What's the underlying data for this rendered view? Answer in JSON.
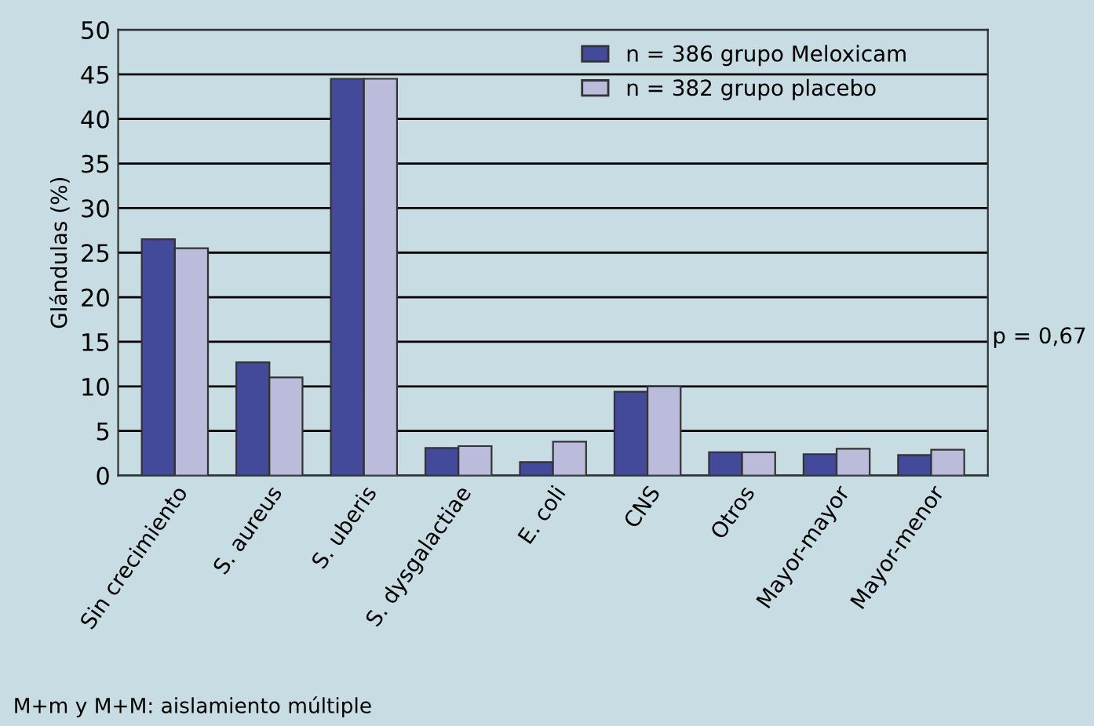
{
  "chart_data": {
    "type": "bar",
    "ylabel": "Glándulas (%)",
    "categories": [
      "Sin crecimiento",
      "S. aureus",
      "S. uberis",
      "S. dysgalactiae",
      "E. coli",
      "CNS",
      "Otros",
      "Mayor-mayor",
      "Mayor-menor"
    ],
    "series": [
      {
        "name": "n = 386 grupo Meloxicam",
        "color": "#434a9a",
        "values": [
          26.5,
          12.7,
          44.5,
          3.1,
          1.5,
          9.4,
          2.6,
          2.4,
          2.3
        ]
      },
      {
        "name": "n = 382 grupo placebo",
        "color": "#bbbbdc",
        "values": [
          25.5,
          11.0,
          44.5,
          3.3,
          3.8,
          10.0,
          2.6,
          3.0,
          2.9
        ]
      }
    ],
    "ylim": [
      0,
      50
    ],
    "yticks": [
      0,
      5,
      10,
      15,
      20,
      25,
      30,
      35,
      40,
      45,
      50
    ],
    "grid": "y",
    "legend": "top right",
    "annotations": [
      "p = 0,67",
      "M+m y M+M: aislamiento múltiple"
    ]
  }
}
